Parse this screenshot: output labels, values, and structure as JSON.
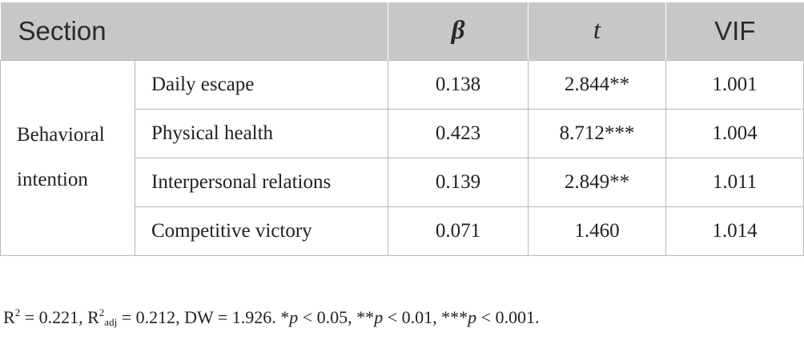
{
  "table": {
    "headers": {
      "section": "Section",
      "beta": "β",
      "t": "t",
      "vif": "VIF"
    },
    "group_label_line1": "Behavioral",
    "group_label_line2": "intention",
    "rows": [
      {
        "section": "Daily escape",
        "beta": "0.138",
        "t": "2.844**",
        "vif": "1.001"
      },
      {
        "section": "Physical health",
        "beta": "0.423",
        "t": "8.712***",
        "vif": "1.004"
      },
      {
        "section": "Interpersonal relations",
        "beta": "0.139",
        "t": "2.849**",
        "vif": "1.011"
      },
      {
        "section": "Competitive victory",
        "beta": "0.071",
        "t": "1.460",
        "vif": "1.014"
      }
    ]
  },
  "footnote": {
    "r2_label": "R",
    "r2_sup": "2",
    "r2_value": " = 0.221, ",
    "r2adj_label": "R",
    "r2adj_sup": "2",
    "r2adj_sub": "adj",
    "r2adj_value": " = 0.212, DW = 1.926. *",
    "p1": "p",
    "p1_value": " < 0.05, **",
    "p2": "p",
    "p2_value": " < 0.01, ***",
    "p3": "p",
    "p3_value": " < 0.001."
  }
}
